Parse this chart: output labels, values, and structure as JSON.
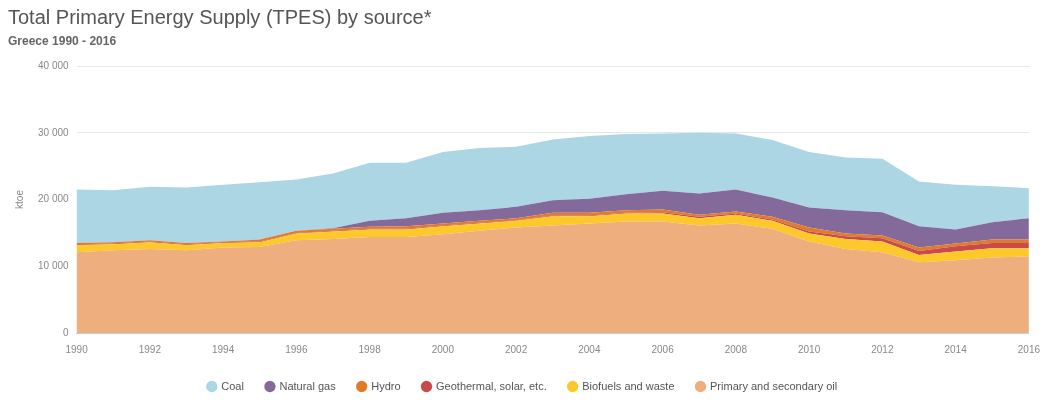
{
  "chart_data": {
    "type": "area",
    "title": "Total Primary Energy Supply (TPES) by source*",
    "subtitle": "Greece 1990 - 2016",
    "ylabel": "ktoe",
    "x": [
      1990,
      1991,
      1992,
      1993,
      1994,
      1995,
      1996,
      1997,
      1998,
      1999,
      2000,
      2001,
      2002,
      2003,
      2004,
      2005,
      2006,
      2007,
      2008,
      2009,
      2010,
      2011,
      2012,
      2013,
      2014,
      2015,
      2016
    ],
    "stacked": true,
    "marker": "none",
    "grid": "y",
    "legend": "bottom",
    "xlim": [
      1990,
      2016
    ],
    "xticks": [
      1990,
      1992,
      1994,
      1996,
      1998,
      2000,
      2002,
      2004,
      2006,
      2008,
      2010,
      2012,
      2014,
      2016
    ],
    "ylim": [
      0,
      40000
    ],
    "yticks": [
      0,
      {
        "value": 10000,
        "label": "10 000"
      },
      {
        "value": 20000,
        "label": "20 000"
      },
      {
        "value": 30000,
        "label": "30 000"
      },
      {
        "value": 40000,
        "label": "40 000"
      }
    ],
    "series": [
      {
        "name": "Primary and secondary oil",
        "color": "#eeae7e",
        "values": [
          12100,
          12400,
          12600,
          12400,
          12800,
          12900,
          13900,
          14100,
          14400,
          14400,
          14800,
          15300,
          15800,
          16100,
          16400,
          16700,
          16700,
          16100,
          16400,
          15600,
          13700,
          12600,
          12100,
          10600,
          10900,
          11300,
          11500
        ]
      },
      {
        "name": "Biofuels and waste",
        "color": "#fcc82a",
        "values": [
          1100,
          900,
          1000,
          800,
          700,
          700,
          1000,
          1100,
          1100,
          1100,
          1200,
          1100,
          1000,
          1400,
          1100,
          1200,
          1200,
          1100,
          1300,
          1200,
          1200,
          1500,
          1600,
          1100,
          1300,
          1400,
          1200
        ]
      },
      {
        "name": "Geothermal, solar, etc.",
        "color": "#c94a4a",
        "values": [
          100,
          100,
          100,
          100,
          100,
          100,
          100,
          100,
          100,
          100,
          100,
          100,
          100,
          100,
          100,
          100,
          200,
          200,
          200,
          200,
          300,
          400,
          500,
          600,
          800,
          800,
          800
        ]
      },
      {
        "name": "Hydro",
        "color": "#e07b2c",
        "values": [
          200,
          200,
          200,
          200,
          100,
          300,
          300,
          300,
          300,
          400,
          300,
          300,
          300,
          400,
          400,
          400,
          400,
          300,
          300,
          400,
          600,
          400,
          400,
          500,
          400,
          500,
          500
        ]
      },
      {
        "name": "Natural gas",
        "color": "#84699b",
        "values": [
          0,
          0,
          0,
          0,
          0,
          0,
          0,
          100,
          900,
          1200,
          1600,
          1600,
          1700,
          1900,
          2100,
          2400,
          2800,
          3200,
          3300,
          2900,
          3000,
          3500,
          3500,
          3200,
          2100,
          2600,
          3200
        ]
      },
      {
        "name": "Coal",
        "color": "#acd6e3",
        "values": [
          8000,
          7800,
          8000,
          8300,
          8500,
          8600,
          7700,
          8200,
          8700,
          8300,
          9100,
          9300,
          9000,
          9100,
          9400,
          9000,
          8600,
          9100,
          8400,
          8600,
          8300,
          7900,
          8000,
          6700,
          6700,
          5400,
          4500
        ]
      }
    ]
  }
}
